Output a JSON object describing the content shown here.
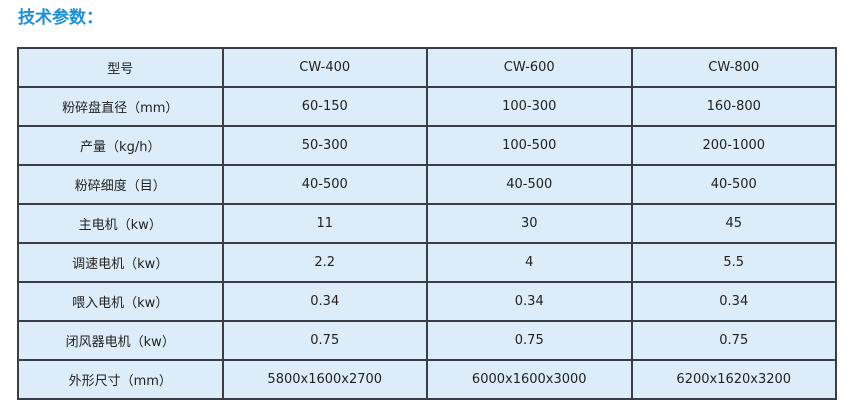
{
  "header": {
    "title": "技术参数："
  },
  "table": {
    "rows": [
      [
        "型号",
        "CW-400",
        "CW-600",
        "CW-800"
      ],
      [
        "粉碎盘直径（mm）",
        "60-150",
        "100-300",
        "160-800"
      ],
      [
        "产量（kg/h）",
        "50-300",
        "100-500",
        "200-1000"
      ],
      [
        "粉碎细度（目）",
        "40-500",
        "40-500",
        "40-500"
      ],
      [
        "主电机（kw）",
        "11",
        "30",
        "45"
      ],
      [
        "调速电机（kw）",
        "2.2",
        "4",
        "5.5"
      ],
      [
        "喂入电机（kw）",
        "0.34",
        "0.34",
        "0.34"
      ],
      [
        "闭风器电机（kw）",
        "0.75",
        "0.75",
        "0.75"
      ],
      [
        "外形尺寸（mm）",
        "5800x1600x2700",
        "6000x1600x3000",
        "6200x1620x3200"
      ]
    ]
  }
}
